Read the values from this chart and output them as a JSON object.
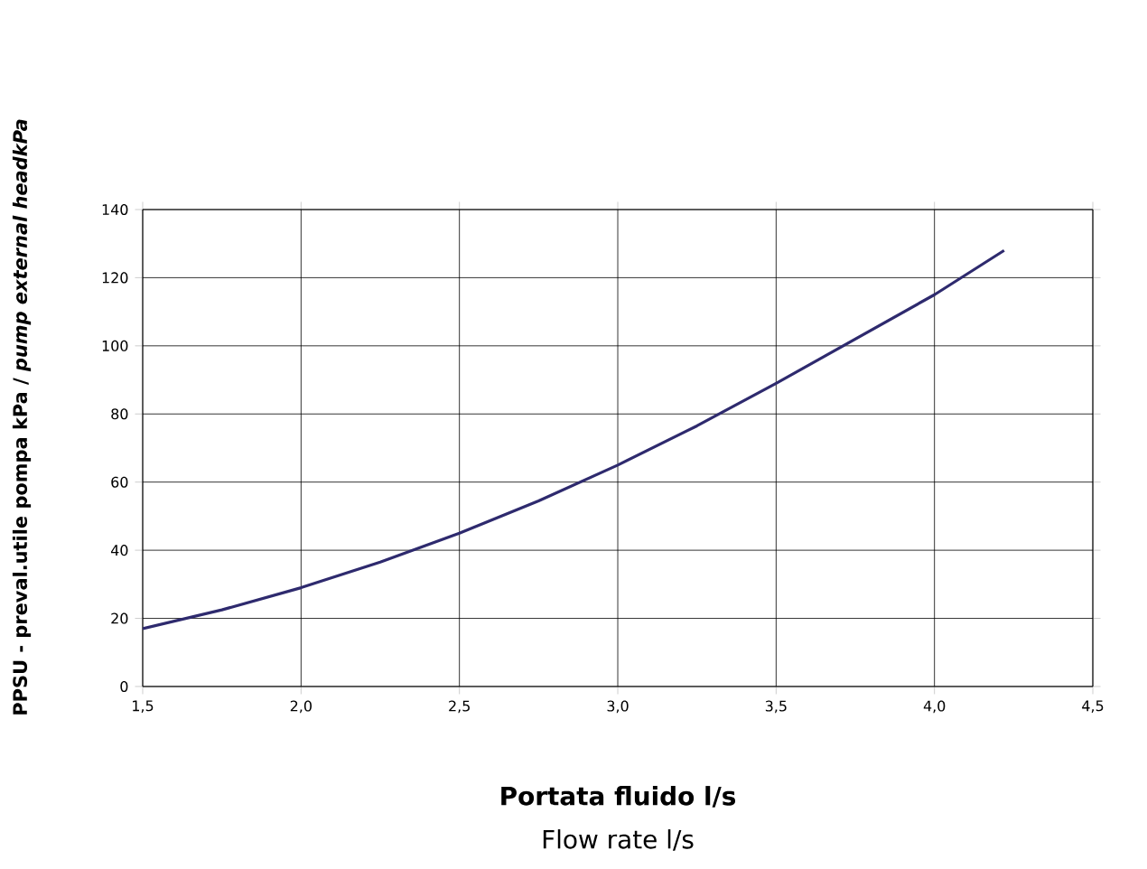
{
  "chart_data": {
    "type": "line",
    "xlabel": "Portata fluido l/s",
    "ylabel": "PPSU - preval.utile pompa kPa / *pump external headkPa*",
    "annotations": [
      "Flow rate l/s"
    ],
    "series": [
      {
        "color": "#2e2a6e",
        "x": [
          1.5,
          1.75,
          2.0,
          2.25,
          2.5,
          2.75,
          3.0,
          3.25,
          3.5,
          3.75,
          4.0,
          4.22
        ],
        "values": [
          17,
          22.5,
          29,
          36.5,
          45,
          54.5,
          65,
          76.5,
          89,
          102,
          115,
          128
        ]
      }
    ],
    "xlim": [
      1.5,
      4.5
    ],
    "xticks": [
      {
        "value": 1.5,
        "label": "1,5"
      },
      {
        "value": 2.0,
        "label": "2,0"
      },
      {
        "value": 2.5,
        "label": "2,5"
      },
      {
        "value": 3.0,
        "label": "3,0"
      },
      {
        "value": 3.5,
        "label": "3,5"
      },
      {
        "value": 4.0,
        "label": "4,0"
      },
      {
        "value": 4.5,
        "label": "4,5"
      }
    ],
    "ylim": [
      0,
      140
    ],
    "yticks": [
      0,
      20,
      40,
      60,
      80,
      100,
      120,
      140
    ],
    "grid": true,
    "marker": "none",
    "line_style": "solid"
  }
}
